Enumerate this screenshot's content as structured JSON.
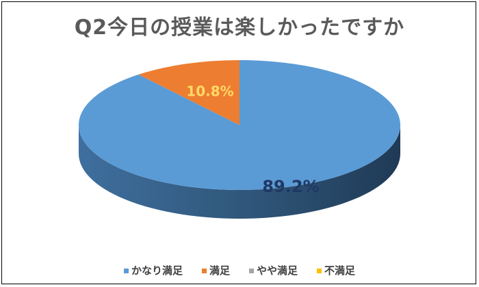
{
  "chart_data": {
    "type": "pie",
    "title": "Q2今日の授業は楽しかったですか",
    "categories": [
      "かなり満足",
      "満足",
      "やや満足",
      "不満足"
    ],
    "values": [
      89.2,
      10.8,
      0,
      0
    ],
    "data_labels": [
      "89.2%",
      "10.8%",
      "",
      ""
    ],
    "colors": [
      "#5b9bd5",
      "#ed7d31",
      "#a5a5a5",
      "#ffc000"
    ],
    "label_colors": [
      "#203864",
      "#ffd966",
      "",
      ""
    ],
    "style": "3d",
    "legend_position": "bottom"
  }
}
